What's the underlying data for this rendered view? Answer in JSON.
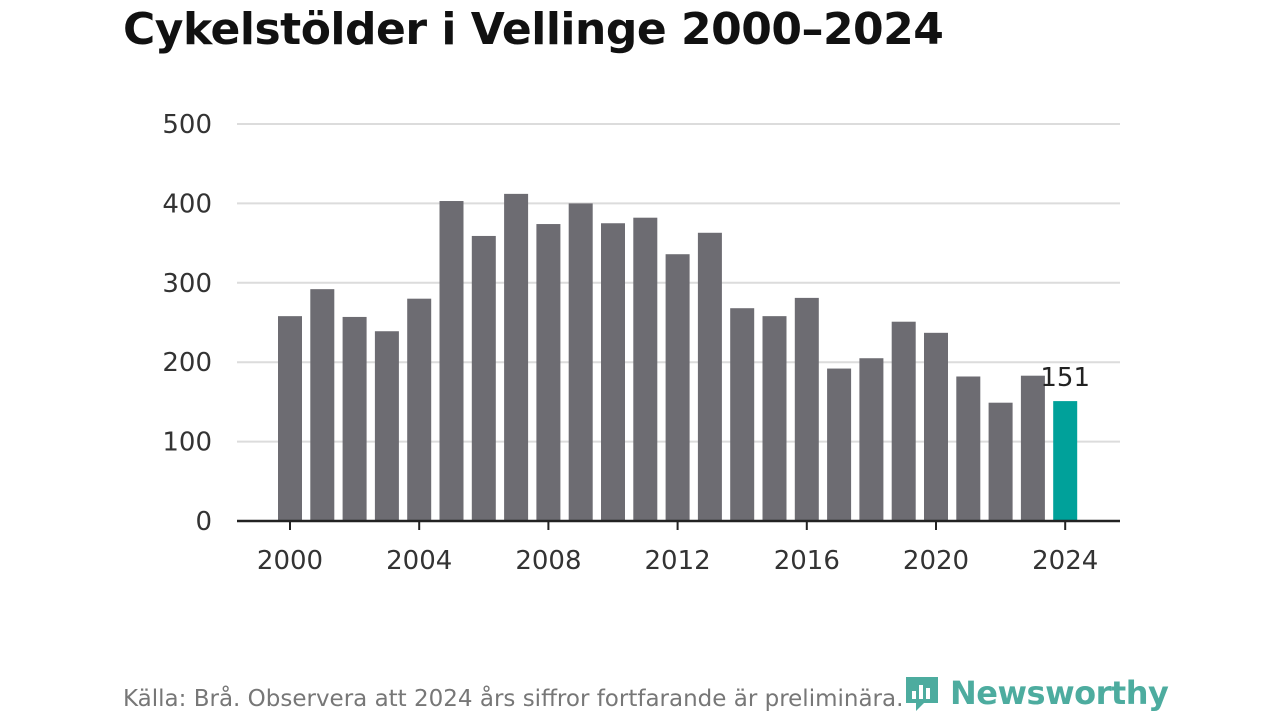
{
  "title": "Cykelstölder i Vellinge 2000–2024",
  "source": "Källa: Brå. Observera att 2024 års siffror fortfarande är preliminära.",
  "logo": {
    "text": "Newsworthy",
    "icon": "bar-chart-speech-bubble-icon"
  },
  "colors": {
    "bar": "#6d6c72",
    "highlight": "#00a19a",
    "grid": "#dcdcdc",
    "axis": "#222222",
    "brand": "#2e9e8f"
  },
  "chart_data": {
    "type": "bar",
    "title": "Cykelstölder i Vellinge 2000–2024",
    "xlabel": "",
    "ylabel": "",
    "ylim": [
      0,
      500
    ],
    "yticks": [
      0,
      100,
      200,
      300,
      400,
      500
    ],
    "xticks": [
      2000,
      2004,
      2008,
      2012,
      2016,
      2020,
      2024
    ],
    "grid": true,
    "categories": [
      2000,
      2001,
      2002,
      2003,
      2004,
      2005,
      2006,
      2007,
      2008,
      2009,
      2010,
      2011,
      2012,
      2013,
      2014,
      2015,
      2016,
      2017,
      2018,
      2019,
      2020,
      2021,
      2022,
      2023,
      2024
    ],
    "values": [
      258,
      292,
      257,
      239,
      280,
      403,
      359,
      412,
      374,
      400,
      375,
      382,
      336,
      363,
      268,
      258,
      281,
      192,
      205,
      251,
      237,
      182,
      149,
      183,
      151
    ],
    "highlight": {
      "category": 2024,
      "label": "151"
    }
  }
}
